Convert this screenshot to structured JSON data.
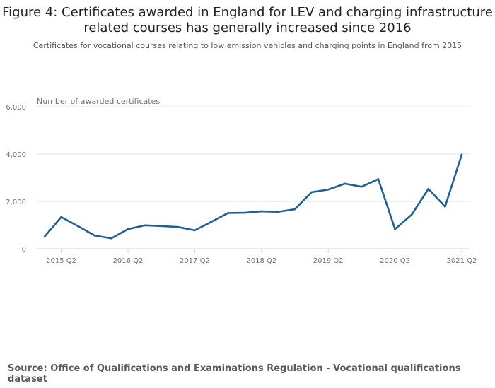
{
  "chart_data": {
    "type": "line",
    "title": "Figure 4: Certificates awarded in England for LEV and charging infrastructure related courses has generally increased since 2016",
    "subtitle": "Certificates for vocational courses relating to low emission vehicles and charging points in England from 2015",
    "ylabel": "Number of awarded certificates",
    "xlabel": "",
    "ylim": [
      0,
      6000
    ],
    "yticks": [
      "0",
      "2,000",
      "4,000",
      "6,000"
    ],
    "grid": true,
    "color": "#206095",
    "x": [
      "2015 Q1",
      "2015 Q2",
      "2015 Q3",
      "2015 Q4",
      "2016 Q1",
      "2016 Q2",
      "2016 Q3",
      "2016 Q4",
      "2017 Q1",
      "2017 Q2",
      "2017 Q3",
      "2017 Q4",
      "2018 Q1",
      "2018 Q2",
      "2018 Q3",
      "2018 Q4",
      "2019 Q1",
      "2019 Q2",
      "2019 Q3",
      "2019 Q4",
      "2020 Q1",
      "2020 Q2",
      "2020 Q3",
      "2020 Q4",
      "2021 Q1",
      "2021 Q2"
    ],
    "xticks": [
      "2015 Q2",
      "2016 Q2",
      "2017 Q2",
      "2018 Q2",
      "2019 Q2",
      "2020 Q2",
      "2021 Q2"
    ],
    "values": [
      510,
      1340,
      960,
      560,
      440,
      830,
      990,
      960,
      920,
      780,
      1140,
      1510,
      1520,
      1580,
      1560,
      1670,
      2390,
      2500,
      2750,
      2620,
      2940,
      830,
      1440,
      2530,
      1780,
      3980
    ]
  },
  "source": "Source: Office of Qualifications and Examinations Regulation - Vocational qualifications dataset"
}
